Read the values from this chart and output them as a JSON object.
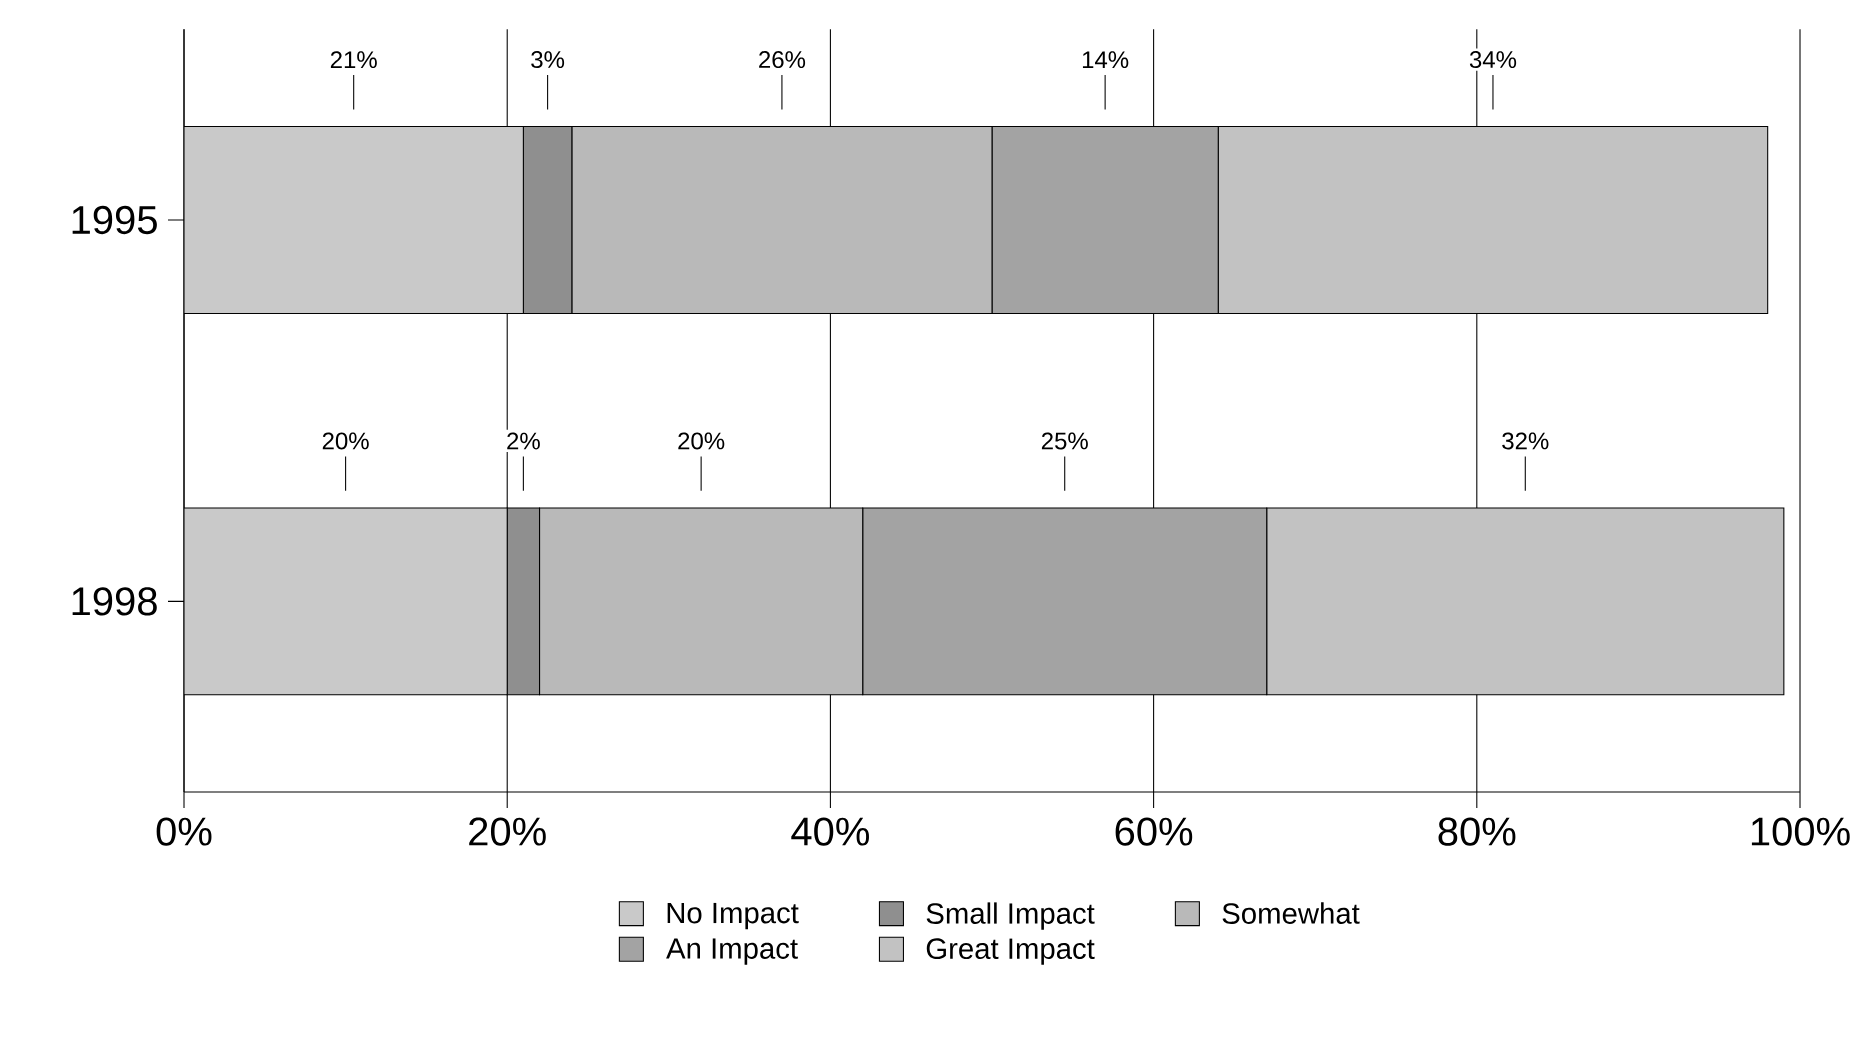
{
  "chart_data": {
    "type": "bar",
    "orientation": "horizontal",
    "stacked": true,
    "categories": [
      "1995",
      "1998"
    ],
    "series": [
      {
        "name": "No Impact",
        "color": "#c9c9c9",
        "values": [
          21,
          20
        ],
        "value_labels": [
          "21%",
          "20%"
        ]
      },
      {
        "name": "Small Impact",
        "color": "#8f8f8f",
        "values": [
          3,
          2
        ],
        "value_labels": [
          "3%",
          "2%"
        ]
      },
      {
        "name": "Somewhat",
        "color": "#b9b9b9",
        "values": [
          26,
          20
        ],
        "value_labels": [
          "26%",
          "20%"
        ]
      },
      {
        "name": "An Impact",
        "color": "#a3a3a3",
        "values": [
          14,
          25
        ],
        "value_labels": [
          "14%",
          "25%"
        ]
      },
      {
        "name": "Great Impact",
        "color": "#c2c2c2",
        "values": [
          34,
          32
        ],
        "value_labels": [
          "34%",
          "32%"
        ]
      }
    ],
    "xlim": [
      0,
      100
    ],
    "xticks": [
      {
        "value": 0,
        "label": "0%"
      },
      {
        "value": 20,
        "label": "20%"
      },
      {
        "value": 40,
        "label": "40%"
      },
      {
        "value": 60,
        "label": "60%"
      },
      {
        "value": 80,
        "label": "80%"
      },
      {
        "value": 100,
        "label": "100%"
      }
    ],
    "grid": "x",
    "legend": "bottom"
  }
}
